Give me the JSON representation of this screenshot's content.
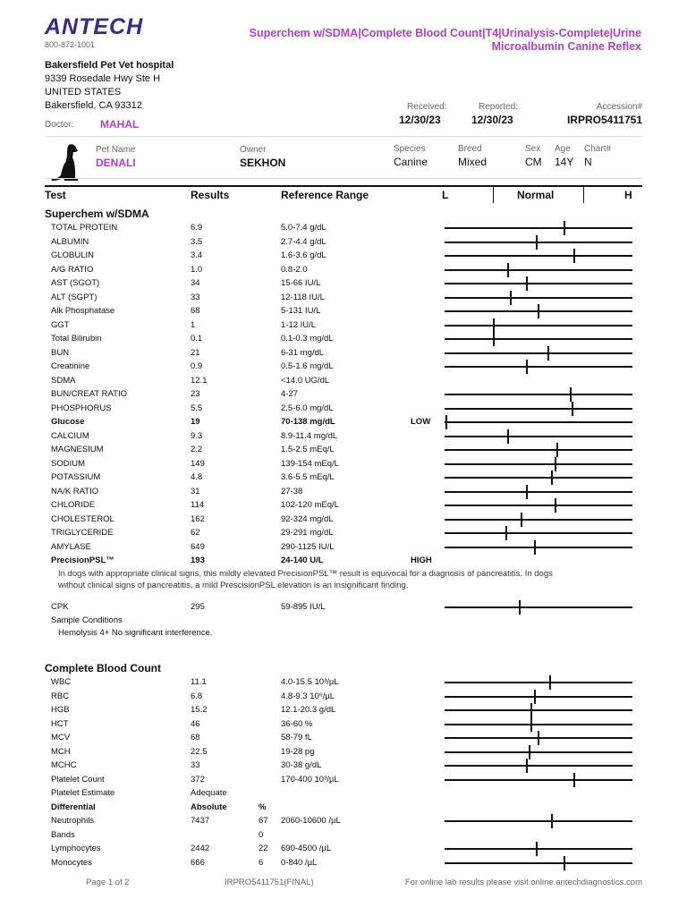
{
  "header": {
    "logo": "ANTECH",
    "phone": "800-872-1001",
    "title": "Superchem w/SDMA|Complete Blood Count|T4|Urinalysis-Complete|Urine Microalbumin Canine Reflex"
  },
  "clinic": {
    "name": "Bakersfield Pet Vet hospital",
    "address1": "9339 Rosedale Hwy Ste H",
    "country": "UNITED STATES",
    "city": "Bakersfield, CA 93312"
  },
  "doctor": {
    "label": "Doctor:",
    "value": "MAHAL"
  },
  "received": {
    "label": "Received:",
    "value": "12/30/23"
  },
  "reported": {
    "label": "Reported:",
    "value": "12/30/23"
  },
  "accession": {
    "label": "Accession#",
    "value": "IRPRO5411751"
  },
  "patient": {
    "pet_label": "Pet Name",
    "pet": "DENALI",
    "owner_label": "Owner",
    "owner": "SEKHON",
    "species_label": "Species",
    "species": "Canine",
    "breed_label": "Breed",
    "breed": "Mixed",
    "sex_label": "Sex",
    "sex": "CM",
    "age_label": "Age",
    "age": "14Y",
    "chart_label": "Chart#",
    "chart": "N"
  },
  "columns": {
    "test": "Test",
    "results": "Results",
    "ref": "Reference Range",
    "low": "L",
    "normal": "Normal",
    "high": "H"
  },
  "superchem": {
    "title": "Superchem w/SDMA",
    "rows": [
      {
        "name": "TOTAL PROTEIN",
        "result": "6.9",
        "ref": "5.0-7.4 g/dL",
        "pos": 0.64
      },
      {
        "name": "ALBUMIN",
        "result": "3.5",
        "ref": "2.7-4.4 g/dL",
        "pos": 0.49
      },
      {
        "name": "GLOBULIN",
        "result": "3.4",
        "ref": "1.6-3.6 g/dL",
        "pos": 0.69
      },
      {
        "name": "A/G RATIO",
        "result": "1.0",
        "ref": "0.8-2.0",
        "pos": 0.34
      },
      {
        "name": "AST (SGOT)",
        "result": "34",
        "ref": "15-66 IU/L",
        "pos": 0.44
      },
      {
        "name": "ALT (SGPT)",
        "result": "33",
        "ref": "12-118 IU/L",
        "pos": 0.35
      },
      {
        "name": "Alk Phosphatase",
        "result": "68",
        "ref": "5-131 IU/L",
        "pos": 0.5
      },
      {
        "name": "GGT",
        "result": "1",
        "ref": "1-12 IU/L",
        "pos": 0.26
      },
      {
        "name": "Total Bilirubin",
        "result": "0.1",
        "ref": "0.1-0.3 mg/dL",
        "pos": 0.26
      },
      {
        "name": "BUN",
        "result": "21",
        "ref": "6-31 mg/dL",
        "pos": 0.55
      },
      {
        "name": "Creatinine",
        "result": "0.9",
        "ref": "0.5-1.6 mg/dL",
        "pos": 0.44
      },
      {
        "name": "SDMA",
        "result": "12.1",
        "ref": "<14.0 UG/dL"
      },
      {
        "name": "BUN/CREAT RATIO",
        "result": "23",
        "ref": "4-27",
        "pos": 0.67
      },
      {
        "name": "PHOSPHORUS",
        "result": "5.5",
        "ref": "2.5-6.0 mg/dL",
        "pos": 0.68
      },
      {
        "name": "Glucose",
        "result": "19",
        "ref": "70-138 mg/dL",
        "flag": "LOW",
        "bold": true,
        "pos": 0.01
      },
      {
        "name": "CALCIUM",
        "result": "9.3",
        "ref": "8.9-11.4 mg/dL",
        "pos": 0.34
      },
      {
        "name": "MAGNESIUM",
        "result": "2.2",
        "ref": "1.5-2.5 mEq/L",
        "pos": 0.6
      },
      {
        "name": "SODIUM",
        "result": "149",
        "ref": "139-154 mEq/L",
        "pos": 0.59
      },
      {
        "name": "POTASSIUM",
        "result": "4.8",
        "ref": "3.6-5.5 mEq/L",
        "pos": 0.57
      },
      {
        "name": "NA/K RATIO",
        "result": "31",
        "ref": "27-38",
        "pos": 0.44
      },
      {
        "name": "CHLORIDE",
        "result": "114",
        "ref": "102-120 mEq/L",
        "pos": 0.59
      },
      {
        "name": "CHOLESTEROL",
        "result": "162",
        "ref": "92-324 mg/dL",
        "pos": 0.41
      },
      {
        "name": "TRIGLYCERIDE",
        "result": "62",
        "ref": "29-291 mg/dL",
        "pos": 0.33
      },
      {
        "name": "AMYLASE",
        "result": "649",
        "ref": "290-1125 IU/L",
        "pos": 0.48
      },
      {
        "name": "PrecisionPSL™",
        "result": "193",
        "ref": "24-140 U/L",
        "flag": "HIGH",
        "bold": true
      }
    ],
    "psl_note1": "In dogs with appropriate clinical signs, this mildly elevated PrecisionPSL™ result is equivocal for a diagnosis of pancreatitis. In dogs",
    "psl_note2": "without clinical signs of pancreatitis, a mild PrescisionPSL elevation is an insignificant finding.",
    "cpk": {
      "name": "CPK",
      "result": "295",
      "ref": "59-895 IU/L",
      "pos": 0.4
    },
    "sample_label": "Sample Conditions",
    "sample_value": "Hemolysis 4+ No significant interference."
  },
  "cbc": {
    "title": "Complete Blood Count",
    "rows": [
      {
        "name": "WBC",
        "result": "11.1",
        "ref": "4.0-15.5 10³/µL",
        "pos": 0.56
      },
      {
        "name": "RBC",
        "result": "6.8",
        "ref": "4.8-9.3 10⁶/µL",
        "pos": 0.48
      },
      {
        "name": "HGB",
        "result": "15.2",
        "ref": "12.1-20.3 g/dL",
        "pos": 0.46
      },
      {
        "name": "HCT",
        "result": "46",
        "ref": "36-60 %",
        "pos": 0.46
      },
      {
        "name": "MCV",
        "result": "68",
        "ref": "58-79 fL",
        "pos": 0.5
      },
      {
        "name": "MCH",
        "result": "22.5",
        "ref": "19-28 pg",
        "pos": 0.45
      },
      {
        "name": "MCHC",
        "result": "33",
        "ref": "30-38 g/dL",
        "pos": 0.44
      },
      {
        "name": "Platelet Count",
        "result": "372",
        "ref": "170-400 10³/µL",
        "pos": 0.69
      },
      {
        "name": "Platelet Estimate",
        "result": "Adequate"
      },
      {
        "name": "Differential",
        "result": "Absolute",
        "pct": "%",
        "bold": true
      },
      {
        "name": "Neutrophils",
        "result": "7437",
        "pct": "67",
        "ref": "2060-10600 /µL",
        "pos": 0.57
      },
      {
        "name": "Bands",
        "result": "",
        "pct": "0"
      },
      {
        "name": "Lymphocytes",
        "result": "2442",
        "pct": "22",
        "ref": "690-4500 /µL",
        "pos": 0.49
      },
      {
        "name": "Monocytes",
        "result": "666",
        "pct": "6",
        "ref": "0-840 /µL",
        "pos": 0.64
      }
    ]
  },
  "footer": {
    "page": "Page 1 of  2",
    "id": "IRPRO5411751(FINAL)",
    "online": "For online lab results please visit online.antechdiagnostics.com"
  }
}
